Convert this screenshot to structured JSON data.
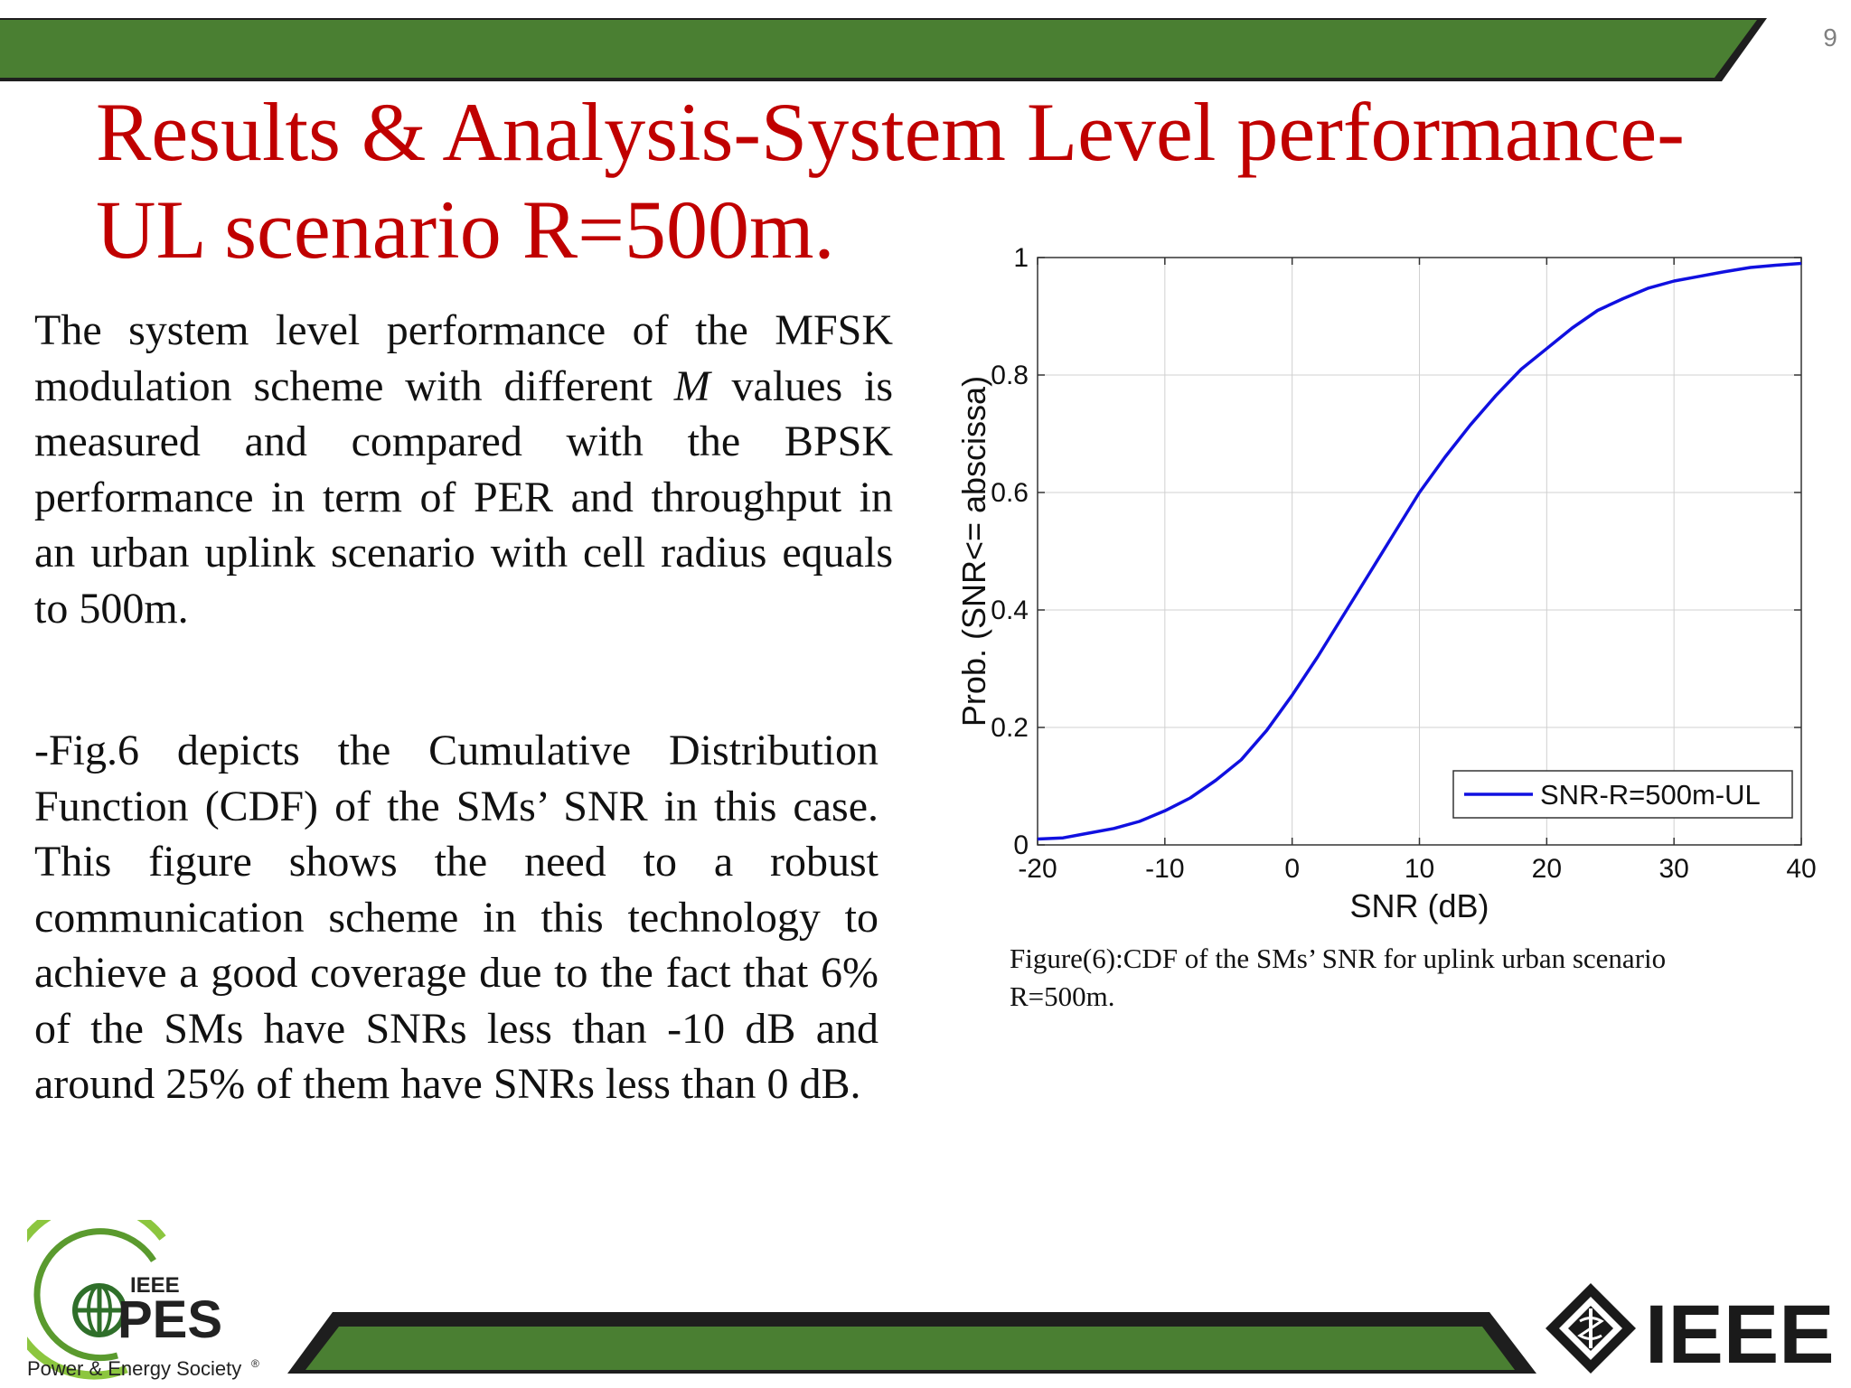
{
  "slide": {
    "page_number": "9",
    "title_line1": "Results & Analysis-System Level performance-",
    "title_line2": "UL scenario R=500m.",
    "paragraph1": {
      "part1": "The system level performance of the MFSK modulation scheme with different ",
      "italic": "M",
      "part2": " values is measured and compared with the BPSK performance in term of PER and throughput in an urban uplink scenario with cell radius equals to 500m."
    },
    "paragraph2": "-Fig.6 depicts the Cumulative Distribution Function (CDF) of the SMs’ SNR in this case. This figure shows the need to a robust communication scheme in this technology to achieve a good coverage due to the fact that 6% of the SMs have SNRs less than -10 dB and around 25% of them have SNRs less than 0 dB.",
    "caption_line1": "Figure(6):CDF of the SMs’ SNR for uplink urban scenario",
    "caption_line2": "R=500m."
  },
  "logos": {
    "pes_top": "IEEE",
    "pes_main": "PES",
    "pes_sub": "Power & Energy Society",
    "pes_mark": "®",
    "ieee": "IEEE"
  },
  "colors": {
    "title": "#c00000",
    "bar_green": "#4a7f32",
    "bar_dark": "#1e1e1e",
    "curve": "#1010e0"
  },
  "chart_data": {
    "type": "line",
    "xlabel": "SNR (dB)",
    "ylabel": "Prob. (SNR<= abscissa)",
    "xlim": [
      -20,
      40
    ],
    "ylim": [
      0,
      1
    ],
    "xticks": [
      "-20",
      "-10",
      "0",
      "10",
      "20",
      "30",
      "40"
    ],
    "yticks": [
      "0",
      "0.2",
      "0.4",
      "0.6",
      "0.8",
      "1"
    ],
    "grid": true,
    "legend_position": "bottom-right",
    "series": [
      {
        "name": "SNR-R=500m-UL",
        "x": [
          -20,
          -18,
          -16,
          -14,
          -12,
          -10,
          -8,
          -6,
          -4,
          -2,
          0,
          2,
          4,
          6,
          8,
          10,
          12,
          14,
          16,
          18,
          20,
          22,
          24,
          26,
          28,
          30,
          32,
          34,
          36,
          38,
          40
        ],
        "y": [
          0.01,
          0.012,
          0.02,
          0.028,
          0.04,
          0.058,
          0.08,
          0.11,
          0.145,
          0.195,
          0.255,
          0.32,
          0.39,
          0.46,
          0.53,
          0.6,
          0.66,
          0.715,
          0.765,
          0.81,
          0.845,
          0.88,
          0.91,
          0.93,
          0.948,
          0.96,
          0.968,
          0.976,
          0.983,
          0.987,
          0.99
        ]
      }
    ]
  }
}
